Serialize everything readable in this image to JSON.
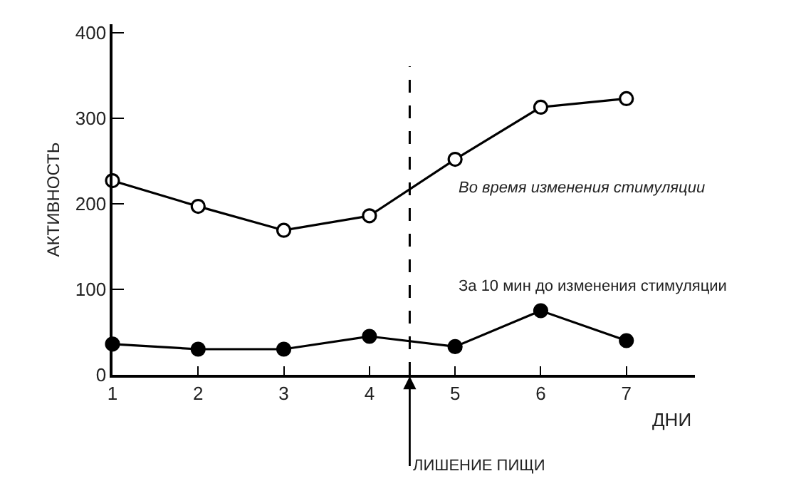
{
  "chart_data": {
    "type": "line",
    "xlabel": "ДНИ",
    "ylabel": "АКТИВНОСТЬ",
    "x": [
      1,
      2,
      3,
      4,
      5,
      6,
      7
    ],
    "series": [
      {
        "name": "Во время изменения стимуляции",
        "color": "#000000",
        "values": [
          227,
          197,
          169,
          186,
          252,
          313,
          323
        ]
      },
      {
        "name": "За 10 мин до изменения стимуляции",
        "color": "#000000",
        "values": [
          36,
          30,
          30,
          45,
          33,
          75,
          40
        ]
      }
    ],
    "xlim": [
      1,
      7.8
    ],
    "xticks": [
      1,
      2,
      3,
      4,
      5,
      6,
      7
    ],
    "ylim": [
      0,
      410
    ],
    "yticks": [
      0,
      100,
      200,
      300,
      400
    ],
    "ref_lines": [
      {
        "axis": "x",
        "value": 4.47,
        "label": "ЛИШЕНИЕ ПИЩИ",
        "line_style": "dashed",
        "color": "#000000"
      }
    ],
    "marker": "circle",
    "line_style": "solid",
    "legend": false
  }
}
